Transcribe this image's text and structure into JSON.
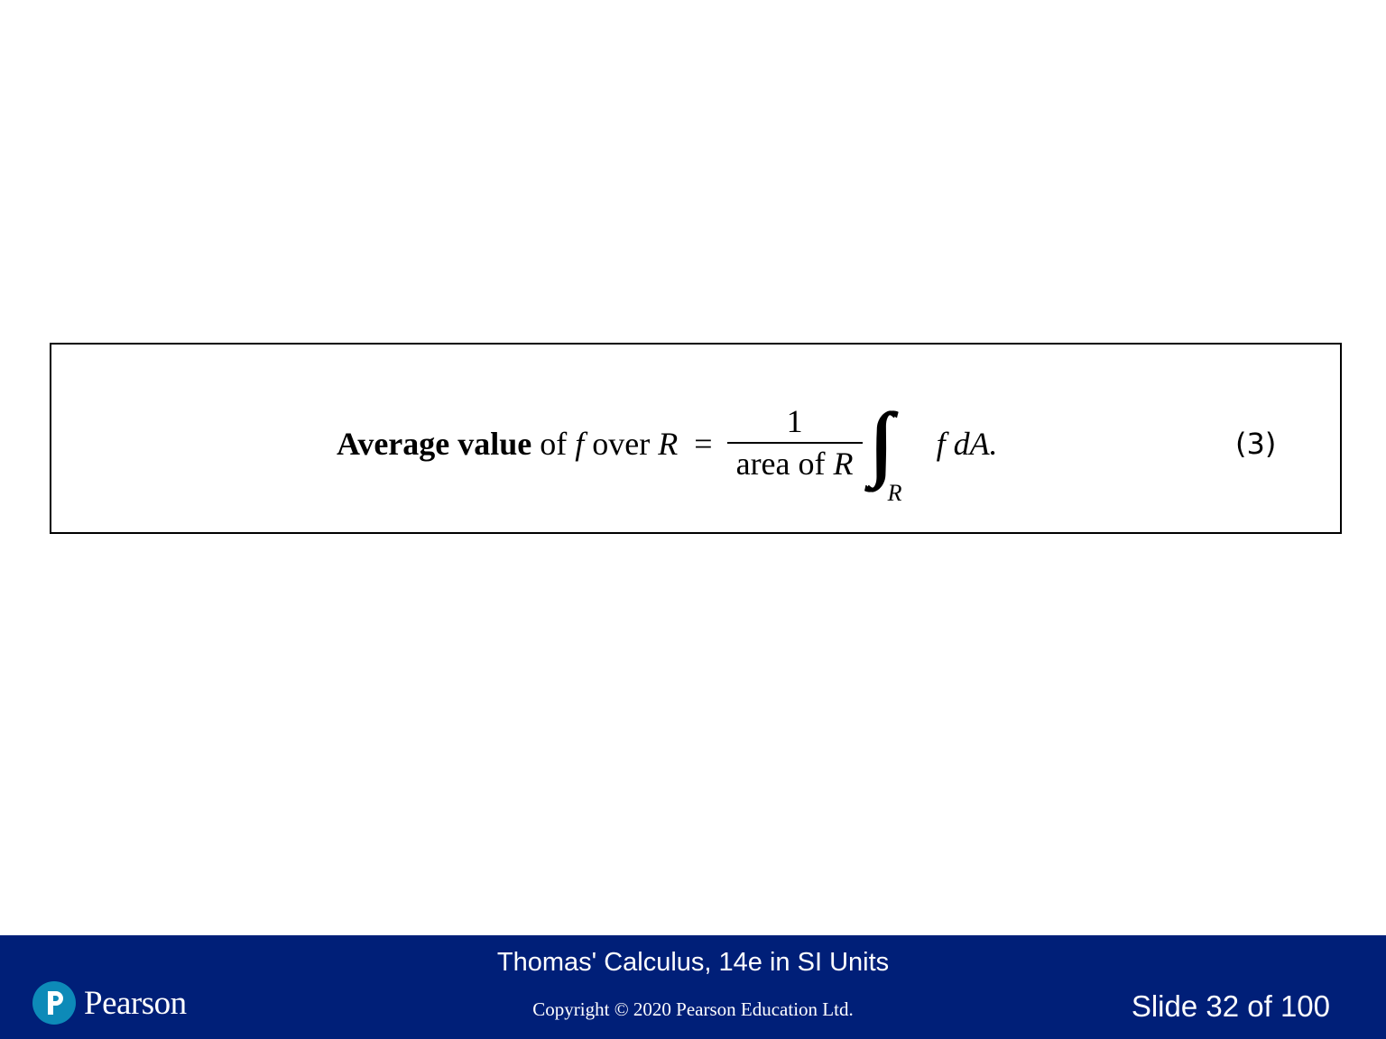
{
  "formula": {
    "label_bold": "Average value",
    "label_of": " of ",
    "label_f": "f",
    "label_over": " over ",
    "label_R": "R",
    "equals": "=",
    "numerator": "1",
    "denominator": "area of R",
    "integral_symbol": "∫∫",
    "integral_subscript": "R",
    "integrand": "f dA.",
    "equation_number": "(3)"
  },
  "footer": {
    "title": "Thomas' Calculus, 14e in SI Units",
    "copyright": "Copyright © 2020 Pearson Education Ltd.",
    "slide_number": "Slide 32 of 100",
    "logo_text": "Pearson",
    "background_color": "#001f78",
    "logo_color": "#0d8ab8"
  }
}
